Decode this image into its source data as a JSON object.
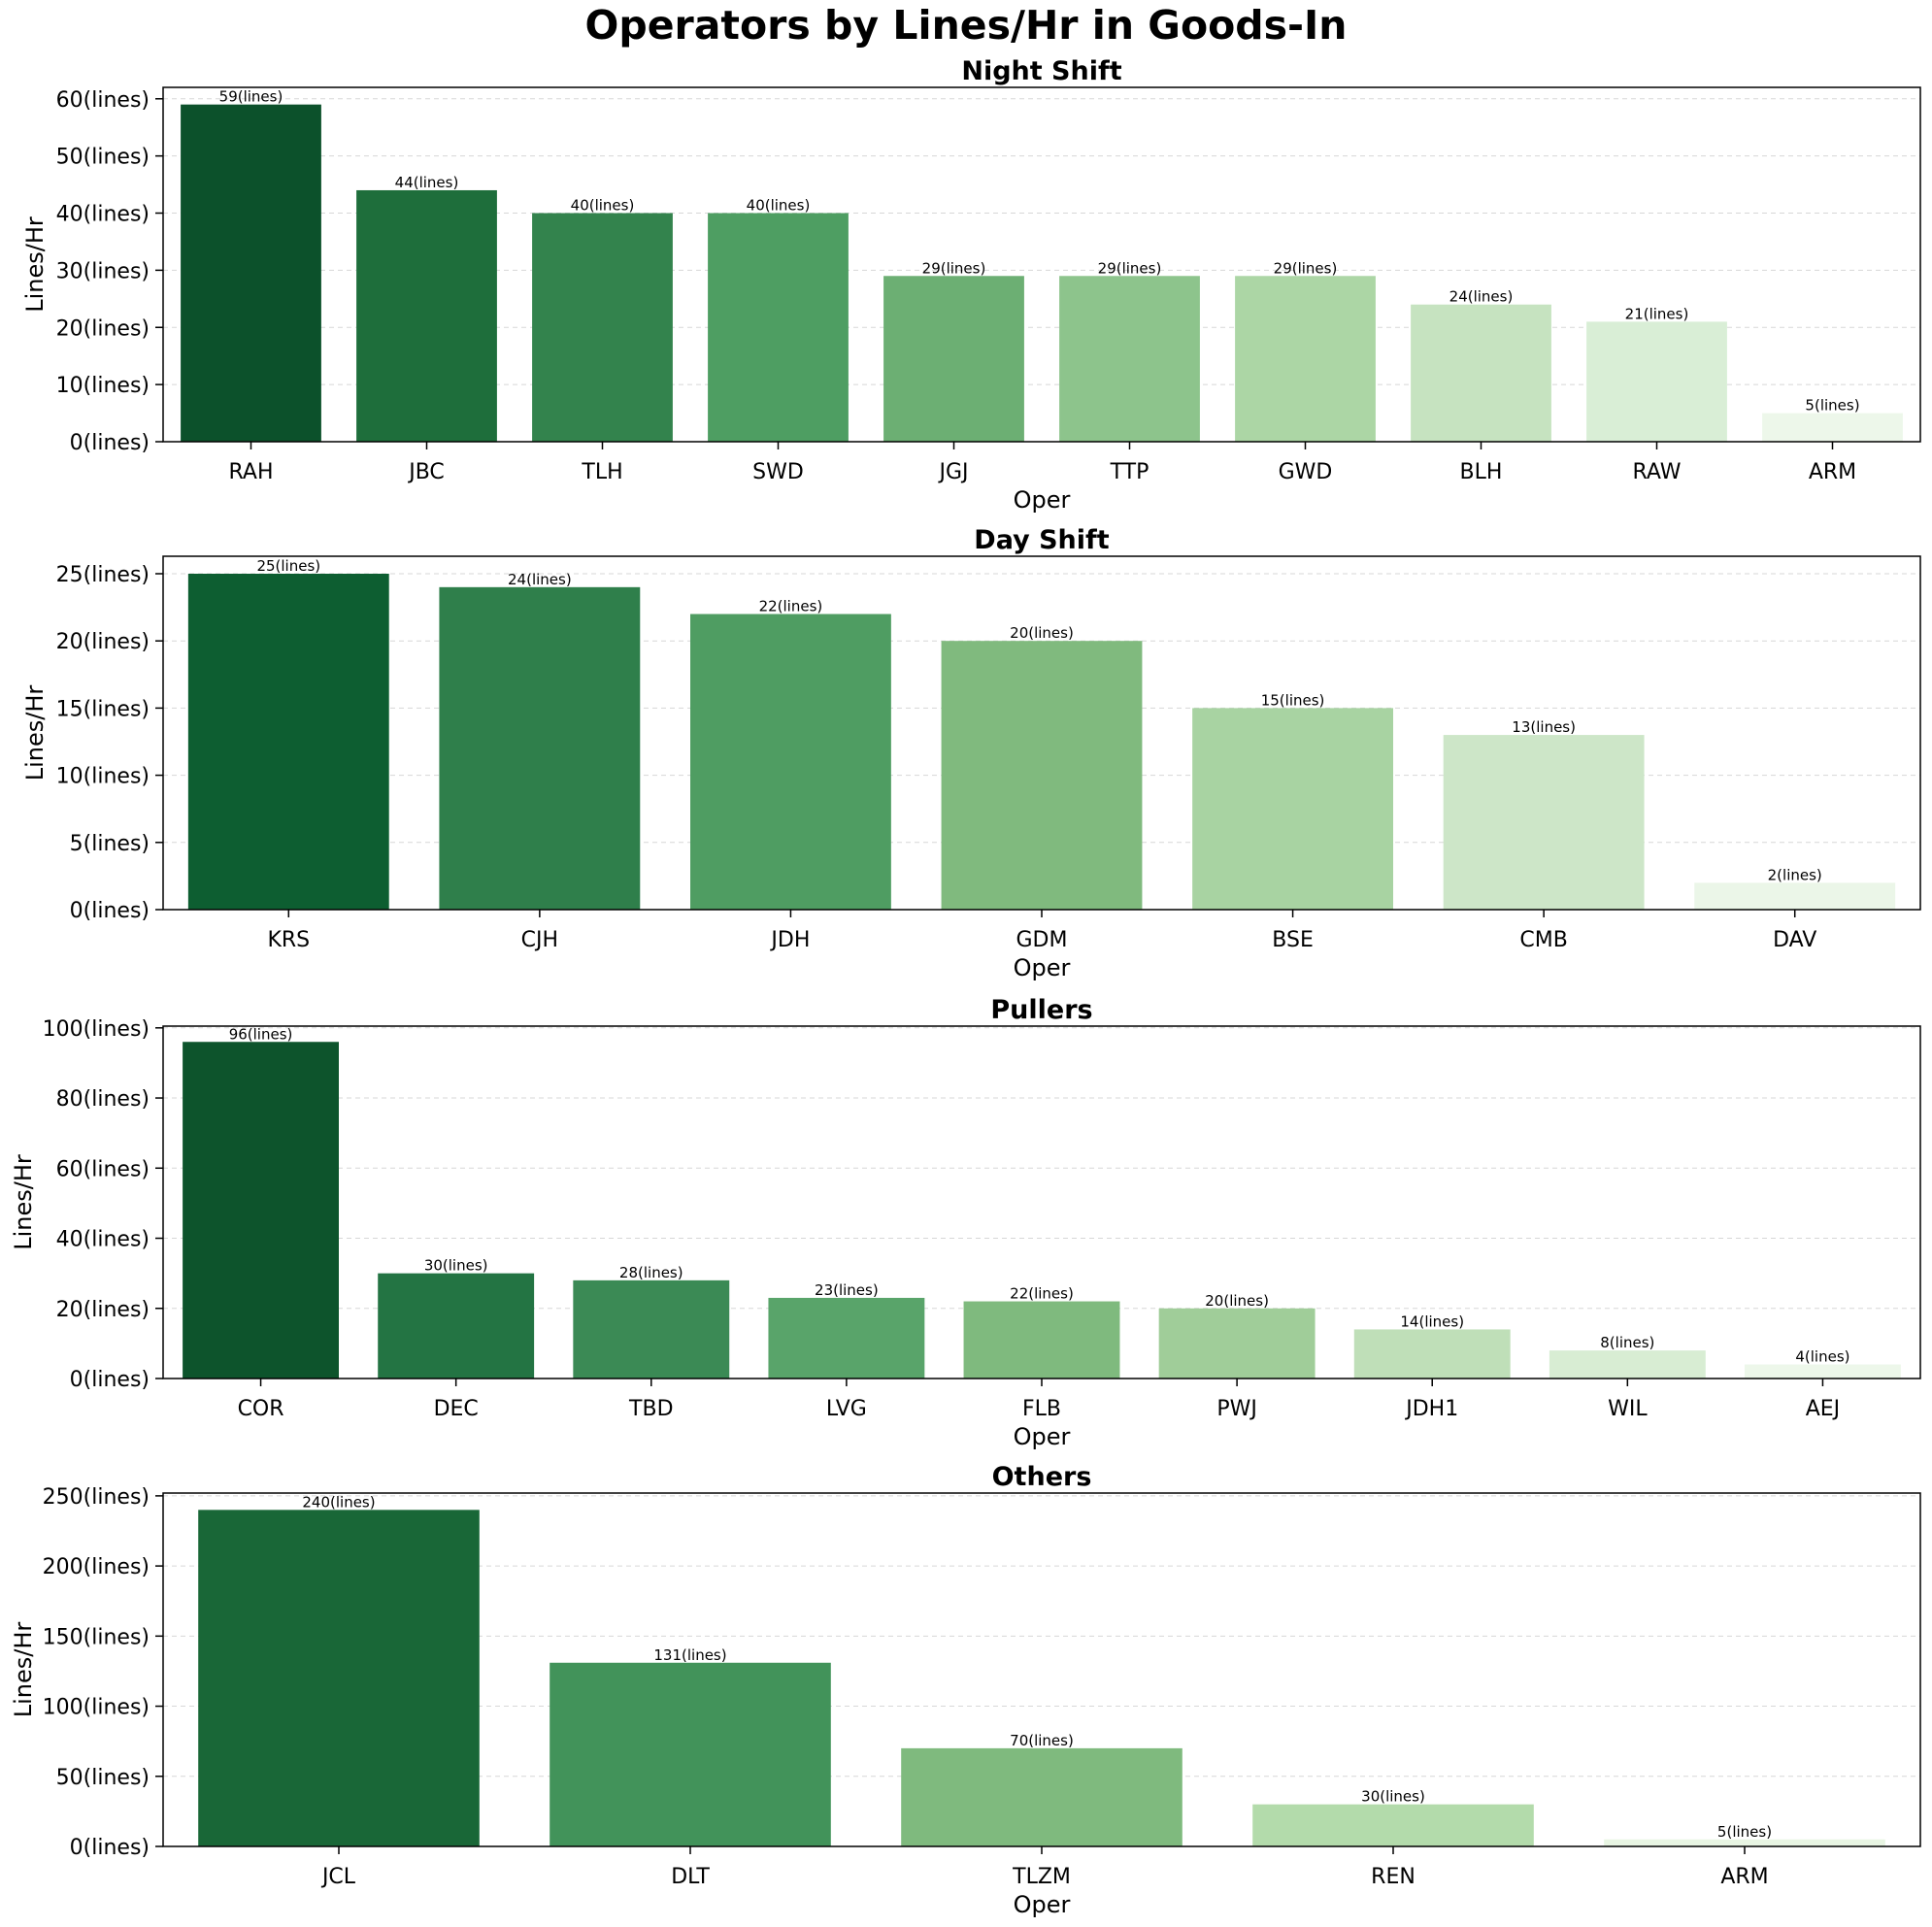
{
  "figure": {
    "title": "Operators by Lines/Hr in Goods-In"
  },
  "chart_data": [
    {
      "type": "bar",
      "title": "Night Shift",
      "xlabel": "Oper",
      "ylabel": "Lines/Hr",
      "value_suffix": "(lines)",
      "ylim": [
        0,
        62
      ],
      "yticks": [
        0,
        10,
        20,
        30,
        40,
        50,
        60
      ],
      "grid": "y-dashed",
      "categories": [
        "RAH",
        "JBC",
        "TLH",
        "SWD",
        "JGJ",
        "TTP",
        "GWD",
        "BLH",
        "RAW",
        "ARM"
      ],
      "values": [
        59,
        44,
        40,
        40,
        29,
        29,
        29,
        24,
        21,
        5
      ],
      "colors": [
        "#0c512b",
        "#1e6e3b",
        "#33834d",
        "#4e9e62",
        "#6caf73",
        "#8dc48c",
        "#acd6a5",
        "#c6e3c0",
        "#d9eed6",
        "#edf7ea"
      ]
    },
    {
      "type": "bar",
      "title": "Day Shift",
      "xlabel": "Oper",
      "ylabel": "Lines/Hr",
      "value_suffix": "(lines)",
      "ylim": [
        0,
        26.3
      ],
      "yticks": [
        0,
        5,
        10,
        15,
        20,
        25
      ],
      "grid": "y-dashed",
      "categories": [
        "KRS",
        "CJH",
        "JDH",
        "GDM",
        "BSE",
        "CMB",
        "DAV"
      ],
      "values": [
        25,
        24,
        22,
        20,
        15,
        13,
        2
      ],
      "colors": [
        "#0d5e31",
        "#2f7f4b",
        "#4f9d62",
        "#80ba7e",
        "#a8d3a2",
        "#cde6c8",
        "#ebf6e8"
      ]
    },
    {
      "type": "bar",
      "title": "Pullers",
      "xlabel": "Oper",
      "ylabel": "Lines/Hr",
      "value_suffix": "(lines)",
      "ylim": [
        0,
        100.5
      ],
      "yticks": [
        0,
        20,
        40,
        60,
        80,
        100
      ],
      "grid": "y-dashed",
      "categories": [
        "COR",
        "DEC",
        "TBD",
        "LVG",
        "FLB",
        "PWJ",
        "JDH1",
        "WIL",
        "AEJ"
      ],
      "values": [
        96,
        30,
        28,
        23,
        22,
        20,
        14,
        8,
        4
      ],
      "colors": [
        "#0d542c",
        "#237443",
        "#3b8a55",
        "#59a46a",
        "#7fba7e",
        "#a0cd99",
        "#bfdfb8",
        "#d8edd3",
        "#edf7ea"
      ]
    },
    {
      "type": "bar",
      "title": "Others",
      "xlabel": "Oper",
      "ylabel": "Lines/Hr",
      "value_suffix": "(lines)",
      "ylim": [
        0,
        252
      ],
      "yticks": [
        0,
        50,
        100,
        150,
        200,
        250
      ],
      "grid": "y-dashed",
      "categories": [
        "JCL",
        "DLT",
        "TLZM",
        "REN",
        "ARM"
      ],
      "values": [
        240,
        131,
        70,
        30,
        5
      ],
      "colors": [
        "#196737",
        "#42935a",
        "#7fba7e",
        "#b3dbab",
        "#e8f5e3"
      ]
    }
  ]
}
